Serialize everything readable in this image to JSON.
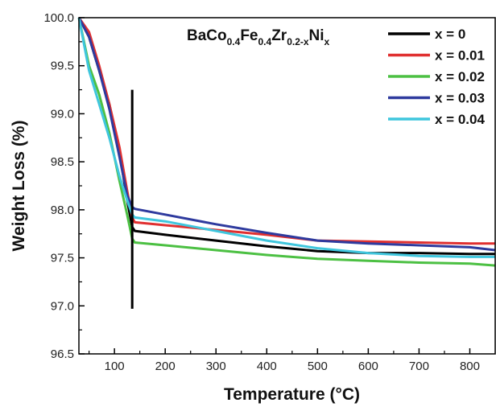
{
  "chart_data": {
    "type": "line",
    "title": "",
    "xlabel": "Temperature (°C)",
    "ylabel": "Weight Loss (%)",
    "xlim": [
      30,
      850
    ],
    "ylim": [
      96.5,
      100.0
    ],
    "xticks": [
      "100",
      "200",
      "300",
      "400",
      "500",
      "600",
      "700",
      "800"
    ],
    "yticks": [
      "96.5",
      "97.0",
      "97.5",
      "98.0",
      "98.5",
      "99.0",
      "99.5",
      "100.0"
    ],
    "grid": false,
    "legend_position": "top-right",
    "annotation": {
      "formula_parts": [
        {
          "text": "BaCo",
          "sub": false
        },
        {
          "text": "0.4",
          "sub": true
        },
        {
          "text": "Fe",
          "sub": false
        },
        {
          "text": "0.4",
          "sub": true
        },
        {
          "text": "Zr",
          "sub": false
        },
        {
          "text": "0.2-x",
          "sub": true
        },
        {
          "text": "Ni",
          "sub": false
        },
        {
          "text": "x",
          "sub": true
        }
      ],
      "vertical_line": {
        "x": 135,
        "y_from": 96.97,
        "y_to": 99.25
      }
    },
    "series": [
      {
        "name": "x = 0",
        "color": "#000000",
        "points": [
          [
            30,
            100.0
          ],
          [
            50,
            99.8
          ],
          [
            70,
            99.45
          ],
          [
            90,
            99.1
          ],
          [
            110,
            98.6
          ],
          [
            125,
            98.1
          ],
          [
            135,
            97.82
          ],
          [
            140,
            97.78
          ],
          [
            200,
            97.74
          ],
          [
            300,
            97.68
          ],
          [
            400,
            97.62
          ],
          [
            500,
            97.57
          ],
          [
            600,
            97.55
          ],
          [
            700,
            97.55
          ],
          [
            800,
            97.54
          ],
          [
            850,
            97.54
          ]
        ]
      },
      {
        "name": "x = 0.01",
        "color": "#e03030",
        "points": [
          [
            30,
            100.0
          ],
          [
            50,
            99.85
          ],
          [
            70,
            99.5
          ],
          [
            90,
            99.1
          ],
          [
            110,
            98.65
          ],
          [
            125,
            98.2
          ],
          [
            135,
            97.92
          ],
          [
            140,
            97.87
          ],
          [
            200,
            97.84
          ],
          [
            300,
            97.79
          ],
          [
            400,
            97.74
          ],
          [
            500,
            97.68
          ],
          [
            600,
            97.67
          ],
          [
            700,
            97.66
          ],
          [
            800,
            97.65
          ],
          [
            850,
            97.65
          ]
        ]
      },
      {
        "name": "x = 0.02",
        "color": "#4cc043",
        "points": [
          [
            30,
            100.0
          ],
          [
            50,
            99.5
          ],
          [
            70,
            99.2
          ],
          [
            90,
            98.8
          ],
          [
            110,
            98.3
          ],
          [
            125,
            97.95
          ],
          [
            135,
            97.7
          ],
          [
            140,
            97.66
          ],
          [
            200,
            97.63
          ],
          [
            300,
            97.58
          ],
          [
            400,
            97.53
          ],
          [
            500,
            97.49
          ],
          [
            600,
            97.47
          ],
          [
            700,
            97.45
          ],
          [
            800,
            97.44
          ],
          [
            850,
            97.42
          ]
        ]
      },
      {
        "name": "x = 0.03",
        "color": "#2e3a9e",
        "points": [
          [
            30,
            100.0
          ],
          [
            50,
            99.8
          ],
          [
            70,
            99.45
          ],
          [
            90,
            99.05
          ],
          [
            110,
            98.55
          ],
          [
            125,
            98.15
          ],
          [
            135,
            98.03
          ],
          [
            140,
            98.01
          ],
          [
            200,
            97.95
          ],
          [
            300,
            97.85
          ],
          [
            400,
            97.76
          ],
          [
            500,
            97.68
          ],
          [
            600,
            97.65
          ],
          [
            700,
            97.63
          ],
          [
            800,
            97.61
          ],
          [
            850,
            97.58
          ]
        ]
      },
      {
        "name": "x = 0.04",
        "color": "#3fc6dd",
        "points": [
          [
            30,
            100.0
          ],
          [
            50,
            99.45
          ],
          [
            70,
            99.1
          ],
          [
            90,
            98.75
          ],
          [
            110,
            98.35
          ],
          [
            125,
            98.1
          ],
          [
            135,
            97.95
          ],
          [
            140,
            97.92
          ],
          [
            200,
            97.88
          ],
          [
            300,
            97.78
          ],
          [
            400,
            97.68
          ],
          [
            500,
            97.6
          ],
          [
            600,
            97.55
          ],
          [
            700,
            97.52
          ],
          [
            800,
            97.51
          ],
          [
            850,
            97.51
          ]
        ]
      }
    ]
  }
}
